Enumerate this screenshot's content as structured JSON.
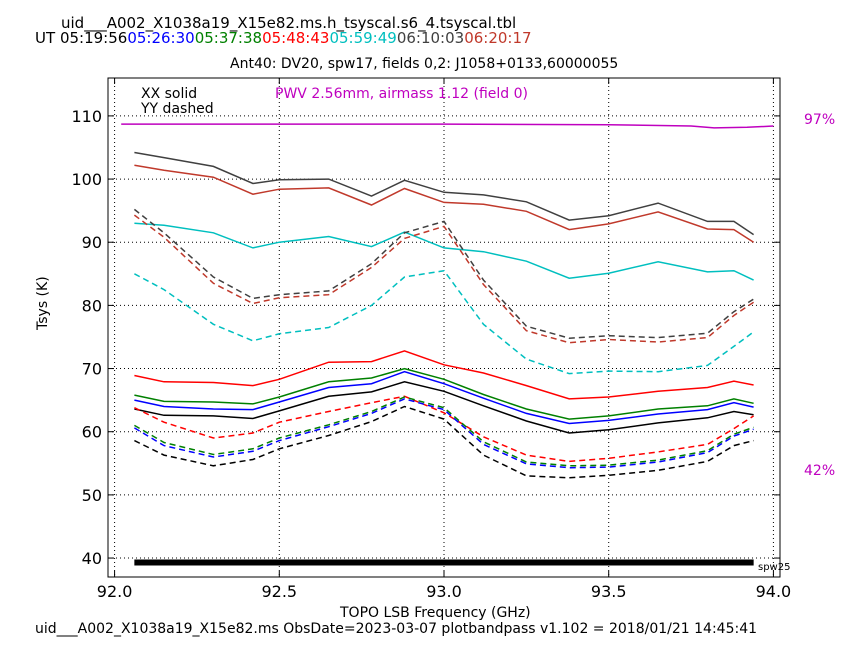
{
  "header": {
    "file_title": "uid___A002_X1038a19_X15e82.ms.h_tsyscal.s6_4.tsyscal.tbl",
    "ut_prefix": "UT",
    "ut_times": [
      {
        "text": "05:19:56",
        "color": "#000000"
      },
      {
        "text": "05:26:30",
        "color": "#0000ff"
      },
      {
        "text": "05:37:38",
        "color": "#008000"
      },
      {
        "text": "05:48:43",
        "color": "#ff0000"
      },
      {
        "text": "05:59:49",
        "color": "#00bfbf"
      },
      {
        "text": "06:10:03",
        "color": "#404040"
      },
      {
        "text": "06:20:17",
        "color": "#c0392b"
      }
    ],
    "plot_title": "Ant40: DV20,  spw17,  fields 0,2: J1058+0133,60000055"
  },
  "footer": "uid___A002_X1038a19_X15e82.ms  ObsDate=2023-03-07   plotbandpass v1.102 = 2018/01/21 14:45:41",
  "chart_data": {
    "type": "line",
    "xlabel": "TOPO LSB Frequency (GHz)",
    "ylabel": "Tsys (K)",
    "xlim": [
      91.98,
      94.02
    ],
    "ylim": [
      37,
      116
    ],
    "xticks": [
      92.0,
      92.5,
      93.0,
      93.5,
      94.0
    ],
    "xtick_labels": [
      "92.0",
      "92.5",
      "93.0",
      "93.5",
      "94.0"
    ],
    "yticks": [
      40,
      50,
      60,
      70,
      80,
      90,
      100,
      110
    ],
    "ytick_labels": [
      "40",
      "50",
      "60",
      "70",
      "80",
      "90",
      "100",
      "110"
    ],
    "grid": true,
    "legend_text": [
      "XX solid",
      "YY dashed"
    ],
    "pwv_text": "PWV 2.56mm, airmass 1.12 (field 0)",
    "pwv_color": "#bf00bf",
    "atm_percent_labels": [
      "97%",
      "42%"
    ],
    "spw_label": "spw25",
    "spw_bar": {
      "x0": 92.06,
      "x1": 93.94,
      "y": 39.3
    },
    "x": [
      92.06,
      92.15,
      92.3,
      92.42,
      92.5,
      92.65,
      92.78,
      92.88,
      93.0,
      93.12,
      93.25,
      93.38,
      93.5,
      93.65,
      93.8,
      93.88,
      93.94
    ],
    "series": [
      {
        "pol": "XX",
        "color": "#404040",
        "dash": false,
        "y": [
          104.2,
          103.4,
          102.0,
          99.3,
          99.9,
          100.0,
          97.3,
          99.8,
          97.9,
          97.5,
          96.4,
          93.5,
          94.2,
          96.2,
          93.3,
          93.3,
          91.2
        ]
      },
      {
        "pol": "XX",
        "color": "#c0392b",
        "dash": false,
        "y": [
          102.2,
          101.4,
          100.3,
          97.6,
          98.4,
          98.6,
          95.9,
          98.5,
          96.3,
          96.0,
          94.9,
          92.0,
          92.9,
          94.8,
          92.1,
          92.0,
          90.0
        ]
      },
      {
        "pol": "XX",
        "color": "#00bfbf",
        "dash": false,
        "y": [
          93.0,
          92.7,
          91.5,
          89.1,
          90.0,
          90.9,
          89.3,
          91.6,
          89.1,
          88.5,
          87.0,
          84.3,
          85.1,
          86.9,
          85.3,
          85.5,
          84.0
        ]
      },
      {
        "pol": "XX",
        "color": "#ff0000",
        "dash": false,
        "y": [
          68.9,
          67.9,
          67.8,
          67.3,
          68.3,
          71.0,
          71.1,
          72.8,
          70.6,
          69.3,
          67.3,
          65.2,
          65.5,
          66.4,
          67.0,
          68.0,
          67.4
        ]
      },
      {
        "pol": "XX",
        "color": "#008000",
        "dash": false,
        "y": [
          65.8,
          64.8,
          64.7,
          64.4,
          65.5,
          67.9,
          68.5,
          70.0,
          68.3,
          65.9,
          63.6,
          62.0,
          62.5,
          63.6,
          64.1,
          65.2,
          64.5
        ]
      },
      {
        "pol": "XX",
        "color": "#0000ff",
        "dash": false,
        "y": [
          65.0,
          64.0,
          63.6,
          63.5,
          64.7,
          67.0,
          67.6,
          69.5,
          67.6,
          65.3,
          62.9,
          61.3,
          61.8,
          62.8,
          63.5,
          64.6,
          63.9
        ]
      },
      {
        "pol": "XX",
        "color": "#000000",
        "dash": false,
        "y": [
          63.6,
          62.6,
          62.5,
          62.1,
          63.3,
          65.6,
          66.3,
          67.9,
          66.4,
          64.1,
          61.7,
          59.8,
          60.3,
          61.4,
          62.2,
          63.2,
          62.7
        ]
      },
      {
        "pol": "YY",
        "color": "#404040",
        "dash": true,
        "y": [
          95.2,
          91.5,
          84.5,
          81.1,
          81.7,
          82.3,
          86.6,
          91.5,
          93.3,
          84.0,
          76.7,
          74.8,
          75.2,
          74.9,
          75.6,
          79.0,
          81.0
        ]
      },
      {
        "pol": "YY",
        "color": "#c0392b",
        "dash": true,
        "y": [
          94.3,
          90.8,
          83.5,
          80.3,
          81.2,
          81.7,
          86.0,
          90.6,
          92.5,
          83.3,
          76.0,
          74.1,
          74.6,
          74.2,
          74.9,
          78.4,
          80.5
        ]
      },
      {
        "pol": "YY",
        "color": "#00bfbf",
        "dash": true,
        "y": [
          85.0,
          82.5,
          77.0,
          74.4,
          75.5,
          76.5,
          80.0,
          84.5,
          85.5,
          77.0,
          71.5,
          69.2,
          69.6,
          69.5,
          70.5,
          73.5,
          75.8
        ]
      },
      {
        "pol": "YY",
        "color": "#ff0000",
        "dash": true,
        "y": [
          63.8,
          61.5,
          59.0,
          59.8,
          61.5,
          63.2,
          64.6,
          65.6,
          63.0,
          59.2,
          56.3,
          55.3,
          55.8,
          56.8,
          58.0,
          60.5,
          62.5
        ]
      },
      {
        "pol": "YY",
        "color": "#008000",
        "dash": true,
        "y": [
          61.0,
          58.3,
          56.4,
          57.3,
          59.0,
          61.1,
          63.2,
          65.5,
          63.8,
          58.4,
          55.2,
          54.6,
          54.7,
          55.5,
          57.0,
          59.6,
          60.7
        ]
      },
      {
        "pol": "YY",
        "color": "#0000ff",
        "dash": true,
        "y": [
          60.6,
          57.8,
          56.0,
          56.9,
          58.6,
          60.8,
          62.9,
          65.2,
          63.5,
          58.0,
          54.9,
          54.3,
          54.4,
          55.2,
          56.7,
          59.3,
          60.4
        ]
      },
      {
        "pol": "YY",
        "color": "#000000",
        "dash": true,
        "y": [
          58.6,
          56.3,
          54.6,
          55.6,
          57.3,
          59.4,
          61.6,
          64.0,
          62.0,
          56.3,
          53.0,
          52.7,
          53.1,
          53.9,
          55.3,
          57.8,
          58.6
        ]
      }
    ],
    "atm_series": {
      "color": "#bf00bf",
      "x": [
        92.02,
        92.5,
        93.0,
        93.5,
        93.75,
        93.82,
        93.92,
        94.0
      ],
      "y": [
        108.7,
        108.7,
        108.7,
        108.6,
        108.4,
        108.1,
        108.2,
        108.4
      ]
    }
  }
}
